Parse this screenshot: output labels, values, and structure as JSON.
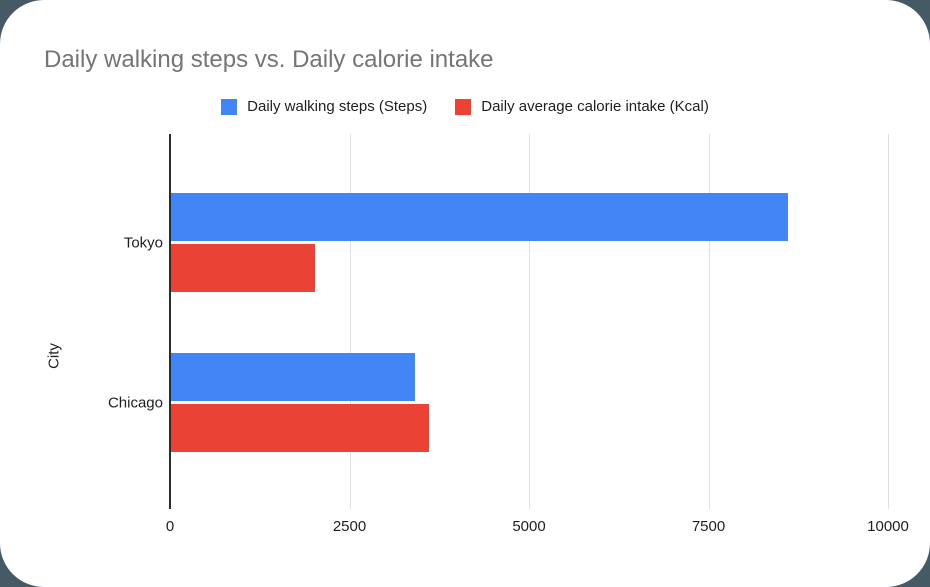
{
  "title": "Daily walking steps vs. Daily calorie intake",
  "colors": {
    "page_background": "#455A64",
    "card_background": "#FFFFFF",
    "title_text": "#757575",
    "label_text": "#1F1F1F",
    "gridline": "#E0E0E0",
    "axis_line": "#2B2B2B",
    "series_blue": "#4285F4",
    "series_red": "#EA4335"
  },
  "chart_data": {
    "type": "bar",
    "orientation": "horizontal",
    "title": "Daily walking steps vs. Daily calorie intake",
    "categories": [
      "Tokyo",
      "Chicago"
    ],
    "series": [
      {
        "name": "Daily walking steps (Steps)",
        "color": "#4285F4",
        "values": [
          8600,
          3400
        ]
      },
      {
        "name": "Daily average calorie intake (Kcal)",
        "color": "#EA4335",
        "values": [
          2000,
          3600
        ]
      }
    ],
    "xlabel": "",
    "ylabel": "City",
    "xlim": [
      0,
      10000
    ],
    "x_ticks": [
      0,
      2500,
      5000,
      7500,
      10000
    ],
    "grid": true,
    "legend_position": "top"
  }
}
